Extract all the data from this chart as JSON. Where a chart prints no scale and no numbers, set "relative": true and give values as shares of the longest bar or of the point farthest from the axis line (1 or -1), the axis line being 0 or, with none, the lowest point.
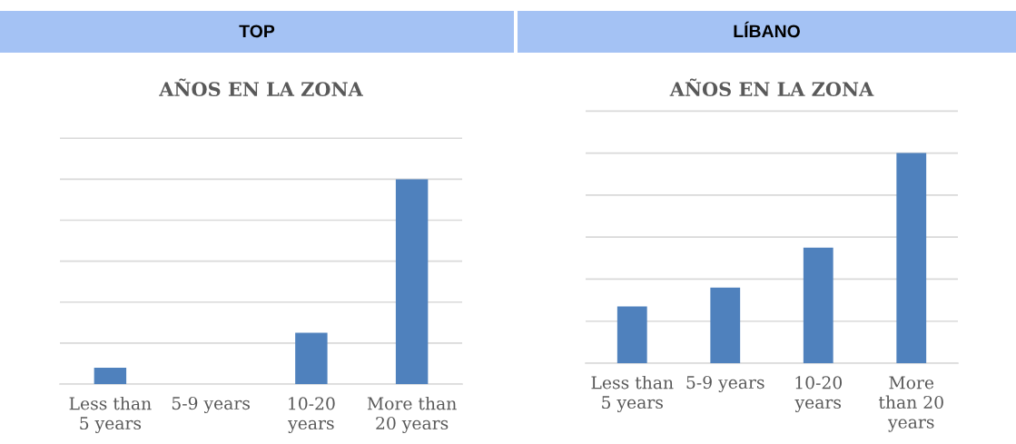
{
  "chart_data": [
    {
      "type": "bar",
      "title": "TOP",
      "subtitle": "AÑOS EN LA ZONA",
      "categories": [
        "Less than\n5 years",
        "5-9 years",
        "10-20\nyears",
        "More than\n20 years"
      ],
      "values": [
        0.08,
        0,
        0.25,
        1
      ],
      "color": "#4f81bd",
      "relative": true,
      "grid": "y"
    },
    {
      "type": "bar",
      "title": "LÍBANO",
      "subtitle": "AÑOS EN LA ZONA",
      "categories": [
        "Less than\n5 years",
        "5-9 years",
        "10-20\nyears",
        "More\nthan 20\nyears"
      ],
      "values": [
        0.27,
        0.36,
        0.55,
        1
      ],
      "color": "#4f81bd",
      "relative": true,
      "grid": "y"
    }
  ]
}
